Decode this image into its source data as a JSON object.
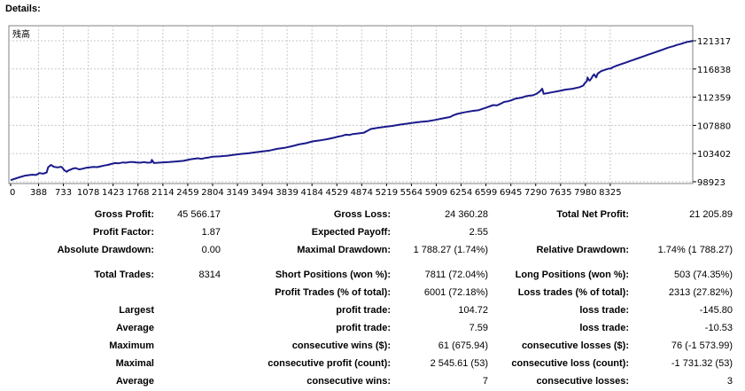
{
  "header": {
    "title": "Details:"
  },
  "chart_data": {
    "type": "line",
    "title": "残高",
    "series": [
      {
        "name": "残高",
        "color": "#1a1a8c",
        "points": [
          [
            0,
            99180
          ],
          [
            100,
            99550
          ],
          [
            200,
            99900
          ],
          [
            300,
            100050
          ],
          [
            350,
            100000
          ],
          [
            400,
            100300
          ],
          [
            450,
            100200
          ],
          [
            500,
            100400
          ],
          [
            520,
            101200
          ],
          [
            560,
            101600
          ],
          [
            600,
            101300
          ],
          [
            650,
            101200
          ],
          [
            700,
            101300
          ],
          [
            720,
            101150
          ],
          [
            740,
            100800
          ],
          [
            780,
            100500
          ],
          [
            800,
            100700
          ],
          [
            860,
            101000
          ],
          [
            900,
            101100
          ],
          [
            950,
            100900
          ],
          [
            1000,
            101000
          ],
          [
            1050,
            101150
          ],
          [
            1100,
            101200
          ],
          [
            1150,
            101280
          ],
          [
            1200,
            101250
          ],
          [
            1250,
            101380
          ],
          [
            1300,
            101500
          ],
          [
            1350,
            101600
          ],
          [
            1400,
            101750
          ],
          [
            1450,
            101900
          ],
          [
            1500,
            101850
          ],
          [
            1560,
            102000
          ],
          [
            1600,
            101950
          ],
          [
            1650,
            102050
          ],
          [
            1700,
            102050
          ],
          [
            1750,
            102000
          ],
          [
            1800,
            101950
          ],
          [
            1850,
            102050
          ],
          [
            1900,
            101950
          ],
          [
            1950,
            102000
          ],
          [
            1960,
            102400
          ],
          [
            1975,
            102150
          ],
          [
            1990,
            101900
          ],
          [
            2050,
            101950
          ],
          [
            2100,
            102000
          ],
          [
            2200,
            102050
          ],
          [
            2300,
            102150
          ],
          [
            2400,
            102250
          ],
          [
            2500,
            102500
          ],
          [
            2600,
            102650
          ],
          [
            2650,
            102550
          ],
          [
            2700,
            102700
          ],
          [
            2750,
            102780
          ],
          [
            2800,
            102900
          ],
          [
            2900,
            102950
          ],
          [
            3000,
            103050
          ],
          [
            3100,
            103200
          ],
          [
            3200,
            103350
          ],
          [
            3300,
            103450
          ],
          [
            3400,
            103600
          ],
          [
            3500,
            103750
          ],
          [
            3600,
            103900
          ],
          [
            3700,
            104150
          ],
          [
            3800,
            104300
          ],
          [
            3900,
            104550
          ],
          [
            3950,
            104700
          ],
          [
            4000,
            104850
          ],
          [
            4100,
            105050
          ],
          [
            4150,
            105200
          ],
          [
            4200,
            105350
          ],
          [
            4300,
            105500
          ],
          [
            4400,
            105700
          ],
          [
            4500,
            105950
          ],
          [
            4550,
            106100
          ],
          [
            4600,
            106200
          ],
          [
            4650,
            106400
          ],
          [
            4700,
            106350
          ],
          [
            4750,
            106500
          ],
          [
            4800,
            106550
          ],
          [
            4900,
            106700
          ],
          [
            4950,
            107000
          ],
          [
            5000,
            107300
          ],
          [
            5100,
            107500
          ],
          [
            5200,
            107650
          ],
          [
            5300,
            107800
          ],
          [
            5400,
            108000
          ],
          [
            5500,
            108150
          ],
          [
            5600,
            108300
          ],
          [
            5700,
            108450
          ],
          [
            5800,
            108550
          ],
          [
            5900,
            108750
          ],
          [
            6000,
            109000
          ],
          [
            6100,
            109200
          ],
          [
            6150,
            109500
          ],
          [
            6200,
            109700
          ],
          [
            6300,
            109950
          ],
          [
            6400,
            110150
          ],
          [
            6500,
            110300
          ],
          [
            6550,
            110500
          ],
          [
            6600,
            110700
          ],
          [
            6650,
            110900
          ],
          [
            6700,
            111100
          ],
          [
            6750,
            111050
          ],
          [
            6800,
            111300
          ],
          [
            6850,
            111600
          ],
          [
            6900,
            111700
          ],
          [
            6950,
            111850
          ],
          [
            7000,
            112100
          ],
          [
            7100,
            112300
          ],
          [
            7150,
            112500
          ],
          [
            7200,
            112600
          ],
          [
            7250,
            112650
          ],
          [
            7300,
            112900
          ],
          [
            7350,
            113300
          ],
          [
            7380,
            113700
          ],
          [
            7400,
            112900
          ],
          [
            7450,
            113000
          ],
          [
            7500,
            113100
          ],
          [
            7600,
            113300
          ],
          [
            7700,
            113550
          ],
          [
            7800,
            113700
          ],
          [
            7900,
            113950
          ],
          [
            7950,
            114200
          ],
          [
            7980,
            114700
          ],
          [
            8000,
            114900
          ],
          [
            8010,
            115500
          ],
          [
            8020,
            115200
          ],
          [
            8040,
            115000
          ],
          [
            8060,
            115300
          ],
          [
            8080,
            115700
          ],
          [
            8100,
            116000
          ],
          [
            8130,
            115500
          ],
          [
            8150,
            116100
          ],
          [
            8200,
            116500
          ],
          [
            8250,
            116700
          ],
          [
            8300,
            116900
          ],
          [
            8330,
            116900
          ],
          [
            8360,
            117100
          ],
          [
            8400,
            117300
          ],
          [
            8450,
            117500
          ],
          [
            8500,
            117700
          ],
          [
            8550,
            117900
          ],
          [
            8600,
            118100
          ],
          [
            8650,
            118300
          ],
          [
            8700,
            118500
          ],
          [
            8750,
            118700
          ],
          [
            8800,
            118900
          ],
          [
            8850,
            119100
          ],
          [
            8900,
            119300
          ],
          [
            8950,
            119500
          ],
          [
            9000,
            119700
          ],
          [
            9050,
            119900
          ],
          [
            9100,
            120100
          ],
          [
            9150,
            120300
          ],
          [
            9200,
            120450
          ],
          [
            9250,
            120650
          ],
          [
            9300,
            120800
          ],
          [
            9350,
            121000
          ],
          [
            9400,
            121150
          ],
          [
            9450,
            121250
          ],
          [
            9470,
            121320
          ]
        ]
      }
    ],
    "x_ticks": [
      "0",
      "388",
      "733",
      "1078",
      "1423",
      "1768",
      "2114",
      "2459",
      "2804",
      "3149",
      "3494",
      "3839",
      "4184",
      "4529",
      "4874",
      "5219",
      "5564",
      "5909",
      "6254",
      "6599",
      "6945",
      "7290",
      "7635",
      "7980",
      "8325"
    ],
    "y_ticks": [
      "121317",
      "116838",
      "112359",
      "107880",
      "103402",
      "98923"
    ],
    "xlim": [
      0,
      9470
    ],
    "ylim": [
      98923,
      121317
    ],
    "grid": true
  },
  "stats": {
    "gross_profit": {
      "label": "Gross Profit:",
      "value": "45 566.17"
    },
    "gross_loss": {
      "label": "Gross Loss:",
      "value": "24 360.28"
    },
    "total_net_profit": {
      "label": "Total Net Profit:",
      "value": "21 205.89"
    },
    "profit_factor": {
      "label": "Profit Factor:",
      "value": "1.87"
    },
    "expected_payoff": {
      "label": "Expected Payoff:",
      "value": "2.55"
    },
    "absolute_drawdown": {
      "label": "Absolute Drawdown:",
      "value": "0.00"
    },
    "maximal_drawdown": {
      "label": "Maximal Drawdown:",
      "value": "1 788.27 (1.74%)"
    },
    "relative_drawdown": {
      "label": "Relative Drawdown:",
      "value": "1.74% (1 788.27)"
    },
    "total_trades": {
      "label": "Total Trades:",
      "value": "8314"
    },
    "short_positions": {
      "label": "Short Positions (won %):",
      "value": "7811 (72.04%)"
    },
    "long_positions": {
      "label": "Long Positions (won %):",
      "value": "503 (74.35%)"
    },
    "profit_trades": {
      "label": "Profit Trades (% of total):",
      "value": "6001 (72.18%)"
    },
    "loss_trades": {
      "label": "Loss trades (% of total):",
      "value": "2313 (27.82%)"
    },
    "largest": {
      "label": "Largest",
      "profit_label": "profit trade:",
      "profit_value": "104.72",
      "loss_label": "loss trade:",
      "loss_value": "-145.80"
    },
    "average": {
      "label": "Average",
      "profit_label": "profit trade:",
      "profit_value": "7.59",
      "loss_label": "loss trade:",
      "loss_value": "-10.53"
    },
    "maximum": {
      "label": "Maximum",
      "profit_label": "consecutive wins ($):",
      "profit_value": "61 (675.94)",
      "loss_label": "consecutive losses ($):",
      "loss_value": "76 (-1 573.99)"
    },
    "maximal": {
      "label": "Maximal",
      "profit_label": "consecutive profit (count):",
      "profit_value": "2 545.61 (53)",
      "loss_label": "consecutive loss (count):",
      "loss_value": "-1 731.32 (53)"
    },
    "average_consecutive": {
      "label": "Average",
      "profit_label": "consecutive wins:",
      "profit_value": "7",
      "loss_label": "consecutive losses:",
      "loss_value": "3"
    }
  }
}
